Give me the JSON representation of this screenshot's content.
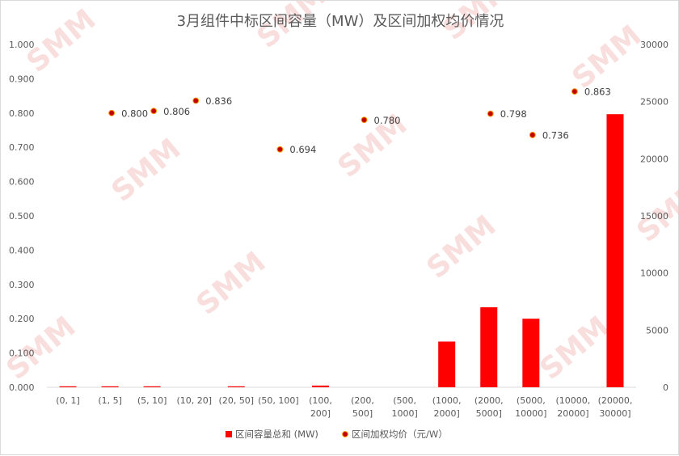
{
  "chart_data": {
    "type": "bar",
    "title": "3月组件中标区间容量（MW）及区间加权均价情况",
    "categories": [
      [
        "(0, 1]"
      ],
      [
        "(1, 5]"
      ],
      [
        "(5, 10]"
      ],
      [
        "(10, 20]"
      ],
      [
        "(20, 50]"
      ],
      [
        "(50, 100]"
      ],
      [
        "(100,",
        "200]"
      ],
      [
        "(200,",
        "500]"
      ],
      [
        "(500,",
        "1000]"
      ],
      [
        "(1000,",
        "2000]"
      ],
      [
        "(2000,",
        "5000]"
      ],
      [
        "(5000,",
        "10000]"
      ],
      [
        "(10000,",
        "20000]"
      ],
      [
        "(20000,",
        "30000]"
      ]
    ],
    "left_axis": {
      "range": [
        0,
        1
      ],
      "ticks": [
        "0.000",
        "0.100",
        "0.200",
        "0.300",
        "0.400",
        "0.500",
        "0.600",
        "0.700",
        "0.800",
        "0.900",
        "1.000"
      ]
    },
    "right_axis": {
      "range": [
        0,
        30000
      ],
      "ticks": [
        "0",
        "5000",
        "10000",
        "15000",
        "20000",
        "25000",
        "30000"
      ]
    },
    "series": [
      {
        "name": "区间容量总和 (MW)",
        "kind": "bar",
        "axis": "right",
        "color": "#ff0000",
        "values": [
          2,
          10,
          15,
          null,
          30,
          null,
          150,
          null,
          null,
          4000,
          7000,
          6000,
          null,
          23900
        ]
      },
      {
        "name": "区间加权均价（元/W）",
        "kind": "scatter",
        "axis": "left",
        "color": "#c00000",
        "values": [
          null,
          0.8,
          0.806,
          0.836,
          null,
          0.694,
          null,
          0.78,
          null,
          null,
          0.798,
          0.736,
          0.863,
          null
        ],
        "labels": [
          null,
          "0.800",
          "0.806",
          "0.836",
          null,
          "0.694",
          null,
          "0.780",
          null,
          null,
          "0.798",
          "0.736",
          "0.863",
          null
        ]
      }
    ],
    "legend_position": "bottom",
    "grid": false,
    "watermark": "SMM"
  }
}
